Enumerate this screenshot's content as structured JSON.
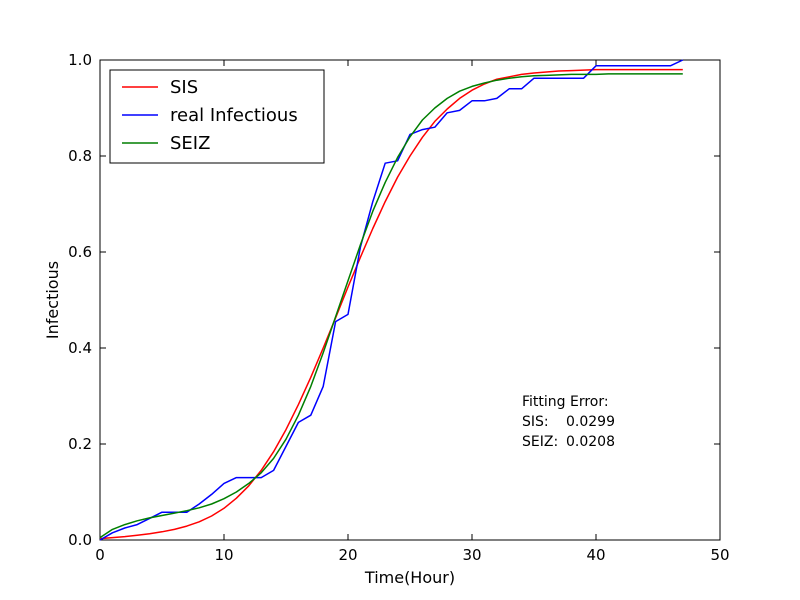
{
  "chart_data": {
    "type": "line",
    "title": "",
    "xlabel": "Time(Hour)",
    "ylabel": "Infectious",
    "xlim": [
      0,
      50
    ],
    "ylim": [
      0,
      1.0
    ],
    "xticks": [
      "0",
      "10",
      "20",
      "30",
      "40",
      "50"
    ],
    "yticks": [
      "0.0",
      "0.2",
      "0.4",
      "0.6",
      "0.8",
      "1.0"
    ],
    "grid": false,
    "legend_position": "top-left",
    "series": [
      {
        "name": "SIS",
        "color": "#ff0000",
        "x": [
          0,
          1,
          2,
          3,
          4,
          5,
          6,
          7,
          8,
          9,
          10,
          11,
          12,
          13,
          14,
          15,
          16,
          17,
          18,
          19,
          20,
          21,
          22,
          23,
          24,
          25,
          26,
          27,
          28,
          29,
          30,
          31,
          32,
          33,
          34,
          35,
          36,
          37,
          38,
          39,
          40,
          41,
          42,
          43,
          44,
          45,
          46,
          47
        ],
        "y": [
          0.003,
          0.005,
          0.007,
          0.01,
          0.013,
          0.017,
          0.022,
          0.029,
          0.038,
          0.05,
          0.066,
          0.087,
          0.113,
          0.145,
          0.184,
          0.23,
          0.282,
          0.339,
          0.4,
          0.463,
          0.527,
          0.589,
          0.649,
          0.705,
          0.756,
          0.8,
          0.839,
          0.872,
          0.898,
          0.92,
          0.937,
          0.95,
          0.96,
          0.965,
          0.97,
          0.973,
          0.975,
          0.977,
          0.978,
          0.979,
          0.98,
          0.98,
          0.98,
          0.98,
          0.98,
          0.98,
          0.98,
          0.98
        ]
      },
      {
        "name": "real Infectious",
        "color": "#0000ff",
        "x": [
          0,
          1,
          2,
          3,
          4,
          5,
          6,
          7,
          8,
          9,
          10,
          11,
          12,
          13,
          14,
          15,
          16,
          17,
          18,
          19,
          20,
          21,
          22,
          23,
          24,
          25,
          26,
          27,
          28,
          29,
          30,
          31,
          32,
          33,
          34,
          35,
          36,
          37,
          38,
          39,
          40,
          41,
          42,
          43,
          44,
          45,
          46,
          47
        ],
        "y": [
          0.0,
          0.015,
          0.025,
          0.032,
          0.045,
          0.058,
          0.058,
          0.058,
          0.075,
          0.095,
          0.118,
          0.13,
          0.13,
          0.13,
          0.145,
          0.195,
          0.245,
          0.26,
          0.32,
          0.455,
          0.47,
          0.61,
          0.705,
          0.785,
          0.79,
          0.845,
          0.855,
          0.86,
          0.89,
          0.895,
          0.915,
          0.915,
          0.92,
          0.94,
          0.94,
          0.962,
          0.962,
          0.962,
          0.962,
          0.962,
          0.988,
          0.988,
          0.988,
          0.988,
          0.988,
          0.988,
          0.988,
          1.0
        ]
      },
      {
        "name": "SEIZ",
        "color": "#007f00",
        "x": [
          0,
          1,
          2,
          3,
          4,
          5,
          6,
          7,
          8,
          9,
          10,
          11,
          12,
          13,
          14,
          15,
          16,
          17,
          18,
          19,
          20,
          21,
          22,
          23,
          24,
          25,
          26,
          27,
          28,
          29,
          30,
          31,
          32,
          33,
          34,
          35,
          36,
          37,
          38,
          39,
          40,
          41,
          42,
          43,
          44,
          45,
          46,
          47
        ],
        "y": [
          0.005,
          0.022,
          0.032,
          0.04,
          0.046,
          0.051,
          0.056,
          0.061,
          0.067,
          0.075,
          0.086,
          0.1,
          0.118,
          0.14,
          0.17,
          0.21,
          0.26,
          0.32,
          0.39,
          0.465,
          0.54,
          0.615,
          0.685,
          0.745,
          0.797,
          0.84,
          0.875,
          0.9,
          0.92,
          0.935,
          0.945,
          0.952,
          0.958,
          0.962,
          0.965,
          0.967,
          0.968,
          0.969,
          0.97,
          0.97,
          0.97,
          0.971,
          0.971,
          0.971,
          0.971,
          0.971,
          0.971,
          0.971
        ]
      }
    ],
    "annotation": {
      "title": "Fitting Error:",
      "lines": [
        {
          "label": "SIS:",
          "value": "0.0299"
        },
        {
          "label": "SEIZ:",
          "value": "0.0208"
        }
      ]
    }
  }
}
